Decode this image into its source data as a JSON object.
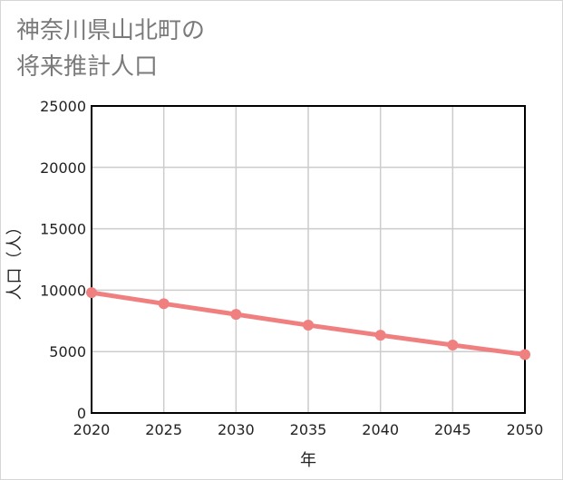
{
  "title": {
    "line1": "神奈川県山北町の",
    "line2": "将来推計人口"
  },
  "chart_data": {
    "type": "line",
    "title": "神奈川県山北町の将来推計人口",
    "xlabel": "年",
    "ylabel": "人口（人）",
    "x": [
      2020,
      2025,
      2030,
      2035,
      2040,
      2045,
      2050
    ],
    "series": [
      {
        "name": "人口",
        "values": [
          9800,
          8900,
          8030,
          7150,
          6330,
          5530,
          4760
        ]
      }
    ],
    "xlim": [
      2020,
      2050
    ],
    "ylim": [
      0,
      25000
    ],
    "x_ticks": [
      "2020",
      "2025",
      "2030",
      "2035",
      "2040",
      "2045",
      "2050"
    ],
    "y_ticks": [
      "0",
      "5000",
      "10000",
      "15000",
      "20000",
      "25000"
    ],
    "grid": true,
    "line_color": "#f08080"
  }
}
